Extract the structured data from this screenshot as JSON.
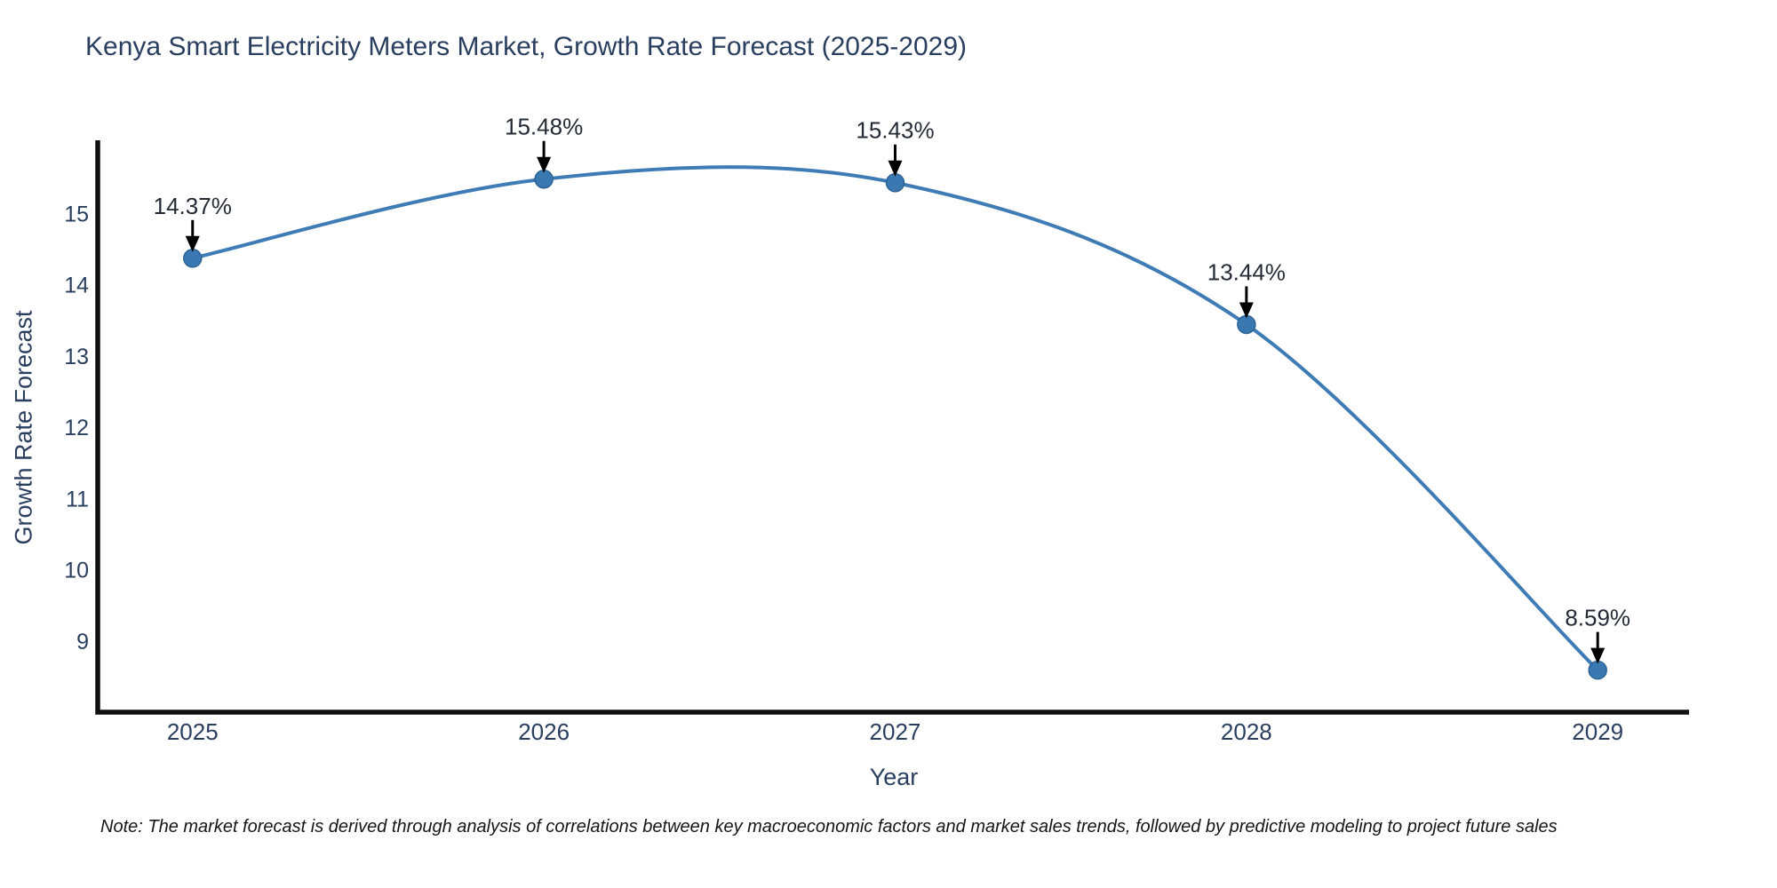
{
  "note": "Note: The market forecast is derived through analysis of correlations between key macroeconomic factors and market sales trends, followed by predictive modeling to project future sales",
  "colors": {
    "line": "#3f7cb5",
    "marker_fill": "#3a78b2",
    "marker_edge": "#2e6496",
    "axis_line": "#111111",
    "tick_text": "#2a3f5f",
    "annotation_text": "#242b36",
    "arrow": "#000000",
    "title_text": "#2a3f5f",
    "background": "#ffffff"
  },
  "chart_data": {
    "type": "line",
    "title": "Kenya Smart Electricity Meters Market, Growth Rate Forecast (2025-2029)",
    "xlabel": "Year",
    "ylabel": "Growth Rate Forecast",
    "x": [
      2025,
      2026,
      2027,
      2028,
      2029
    ],
    "values": [
      14.37,
      15.48,
      15.43,
      13.44,
      8.59
    ],
    "point_labels": [
      "14.37%",
      "15.48%",
      "15.43%",
      "13.44%",
      "8.59%"
    ],
    "series_name": "Growth Rate Forecast",
    "xticks": [
      "2025",
      "2026",
      "2027",
      "2028",
      "2029"
    ],
    "yticks": [
      9,
      10,
      11,
      12,
      13,
      14,
      15
    ],
    "xlim": [
      2024.73,
      2029.26
    ],
    "ylim": [
      8.0,
      16.0
    ],
    "grid": false,
    "legend": "none",
    "line_shape": "spline",
    "annotations_have_arrows": true
  }
}
